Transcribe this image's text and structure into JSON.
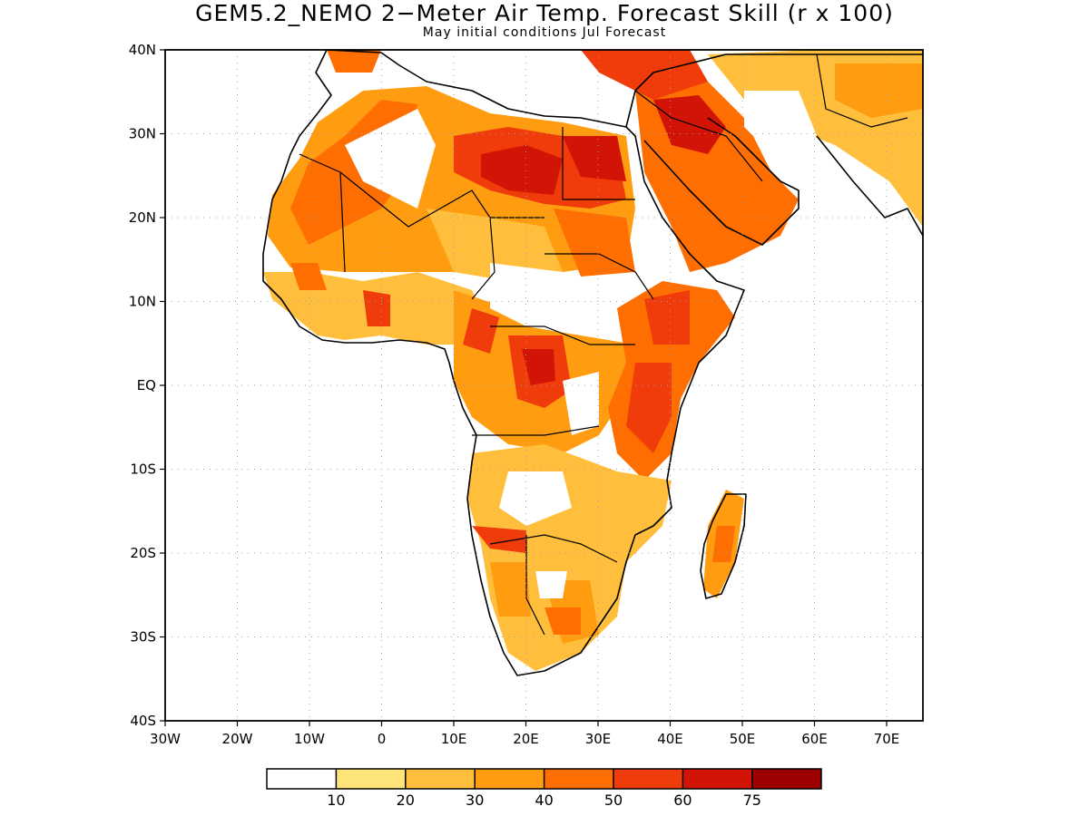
{
  "figure": {
    "title": "GEM5.2_NEMO 2−Meter Air Temp. Forecast Skill (r x 100)",
    "subtitle": "May initial conditions  Jul Forecast"
  },
  "axes": {
    "lat_ticks": [
      "40N",
      "30N",
      "20N",
      "10N",
      "EQ",
      "10S",
      "20S",
      "30S",
      "40S"
    ],
    "lon_ticks": [
      "30W",
      "20W",
      "10W",
      "0",
      "10E",
      "20E",
      "30E",
      "40E",
      "50E",
      "60E",
      "70E"
    ],
    "lon_range": [
      -30,
      75
    ],
    "lat_range": [
      -40,
      40
    ],
    "grid": "dotted"
  },
  "colorbar": {
    "labels": [
      "10",
      "20",
      "30",
      "40",
      "50",
      "60",
      "75"
    ],
    "colors": [
      "#ffffff",
      "#ffe47a",
      "#ffbf3c",
      "#ff9c10",
      "#ff6e00",
      "#f03c0a",
      "#d21406",
      "#9c0000"
    ]
  }
}
